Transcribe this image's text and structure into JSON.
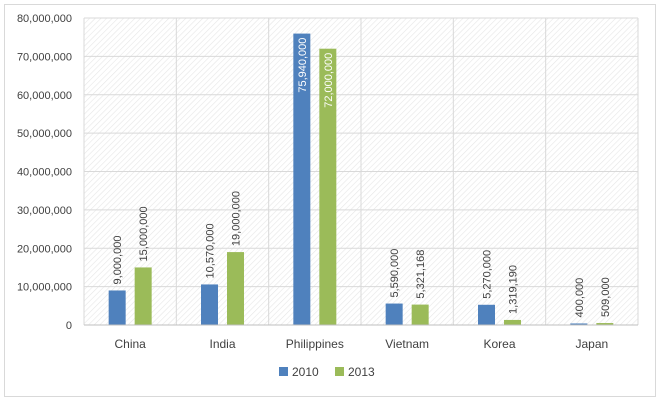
{
  "chart_data": {
    "type": "bar",
    "categories": [
      "China",
      "India",
      "Philippines",
      "Vietnam",
      "Korea",
      "Japan"
    ],
    "series": [
      {
        "name": "2010",
        "color": "#4f81bd",
        "values": [
          9000000,
          10570000,
          75940000,
          5590000,
          5270000,
          400000
        ],
        "labels": [
          "9,000,000",
          "10,570,000",
          "75,940,000",
          "5,590,000",
          "5,270,000",
          "400,000"
        ]
      },
      {
        "name": "2013",
        "color": "#9bbb59",
        "values": [
          15000000,
          19000000,
          72000000,
          5321168,
          1319190,
          509000
        ],
        "labels": [
          "15,000,000",
          "19,000,000",
          "72,000,000",
          "5,321,168",
          "1,319,190",
          "509,000"
        ]
      }
    ],
    "ylim": [
      0,
      80000000
    ],
    "yticks": [
      0,
      10000000,
      20000000,
      30000000,
      40000000,
      50000000,
      60000000,
      70000000,
      80000000
    ],
    "ytick_labels": [
      "0",
      "10,000,000",
      "20,000,000",
      "30,000,000",
      "40,000,000",
      "50,000,000",
      "60,000,000",
      "70,000,000",
      "80,000,000"
    ],
    "grid": true,
    "plot_background": "hatched",
    "legend_position": "bottom"
  }
}
